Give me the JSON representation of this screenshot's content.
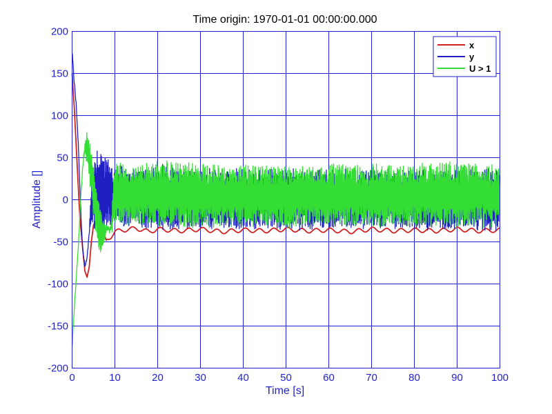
{
  "chart_data": {
    "type": "line",
    "title": "Time origin: 1970-01-01 00:00:00.000",
    "xlabel": "Time  [s]",
    "ylabel": "Amplitude  []",
    "xlim": [
      0,
      100
    ],
    "ylim": [
      -200,
      200
    ],
    "xticks": [
      0,
      10,
      20,
      30,
      40,
      50,
      60,
      70,
      80,
      90,
      100
    ],
    "yticks": [
      -200,
      -150,
      -100,
      -50,
      0,
      50,
      100,
      150,
      200
    ],
    "grid": true,
    "legend_position": "top-right",
    "series": [
      {
        "name": "x",
        "color": "#d02020",
        "x": [
          0,
          0.5,
          1.2,
          1.8,
          2.5,
          3,
          3.5,
          4,
          4.5,
          5,
          6,
          7,
          8,
          9,
          10,
          12,
          15,
          18,
          20,
          25,
          30,
          35,
          40,
          45,
          50,
          55,
          60,
          65,
          70,
          75,
          80,
          85,
          90,
          95,
          100
        ],
        "y": [
          150,
          110,
          40,
          -20,
          -60,
          -85,
          -92,
          -80,
          -50,
          -30,
          -20,
          -35,
          -48,
          -44,
          -38,
          -36,
          -34,
          -38,
          -35,
          -37,
          -35,
          -38,
          -36,
          -37,
          -35,
          -37,
          -36,
          -38,
          -35,
          -37,
          -36,
          -37,
          -35,
          -37,
          -36
        ]
      },
      {
        "name": "y",
        "color": "#2020c0",
        "x": [
          0,
          0.5,
          1,
          1.5,
          2,
          2.5,
          3,
          3.5,
          4,
          4.5,
          5,
          6,
          7,
          8,
          9,
          10,
          15,
          20,
          30,
          40,
          50,
          60,
          70,
          80,
          90,
          100
        ],
        "y": [
          175,
          140,
          110,
          60,
          -10,
          -60,
          -80,
          -70,
          -40,
          20,
          50,
          65,
          60,
          50,
          45,
          40,
          35,
          40,
          35,
          35,
          35,
          35,
          35,
          35,
          35,
          35
        ],
        "y_lower": [
          175,
          140,
          110,
          60,
          -10,
          -60,
          -80,
          -70,
          -40,
          -30,
          -35,
          -40,
          -45,
          -35,
          -32,
          -30,
          -32,
          -34,
          -33,
          -34,
          -33,
          -34,
          -33,
          -34,
          -33,
          -34
        ]
      },
      {
        "name": "U > 1",
        "color": "#33dd33",
        "x": [
          0,
          0.5,
          1,
          1.5,
          2,
          2.5,
          3,
          3.5,
          4,
          4.5,
          5,
          5.5,
          6,
          6.5,
          7,
          8,
          9,
          10,
          15,
          20,
          30,
          40,
          50,
          60,
          70,
          80,
          90,
          100
        ],
        "y": [
          -175,
          -130,
          -90,
          -50,
          0,
          40,
          70,
          80,
          75,
          60,
          40,
          20,
          5,
          -10,
          -20,
          -30,
          -32,
          45,
          40,
          45,
          42,
          40,
          40,
          42,
          40,
          42,
          44,
          40
        ],
        "y_lower": [
          -175,
          -130,
          -90,
          -50,
          0,
          40,
          55,
          40,
          20,
          0,
          -20,
          -40,
          -55,
          -65,
          -60,
          -40,
          -40,
          -30,
          -32,
          -30,
          -32,
          -30,
          -32,
          -30,
          -32,
          -30,
          -32,
          -30
        ]
      }
    ]
  }
}
